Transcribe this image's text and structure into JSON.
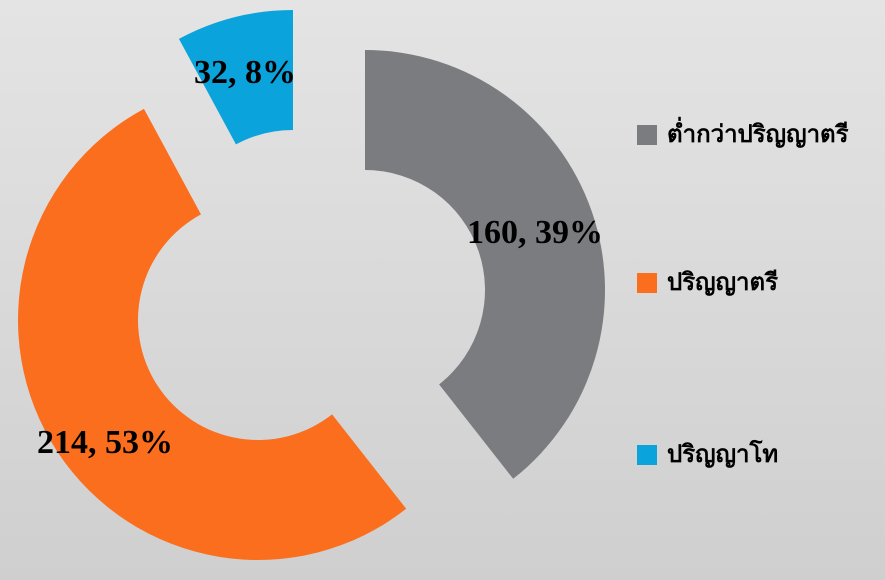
{
  "chart_data": {
    "type": "donut",
    "categories": [
      "ต่ำกว่าปริญญาตรี",
      "ปริญญาตรี",
      "ปริญญาโท"
    ],
    "values": [
      160,
      214,
      32
    ],
    "value_labels": [
      "160, 39%",
      "214, 53%",
      "32, 8%"
    ],
    "colors": [
      "#7b7c80",
      "#fa6e1e",
      "#0aa3dc"
    ],
    "legend": "right"
  }
}
